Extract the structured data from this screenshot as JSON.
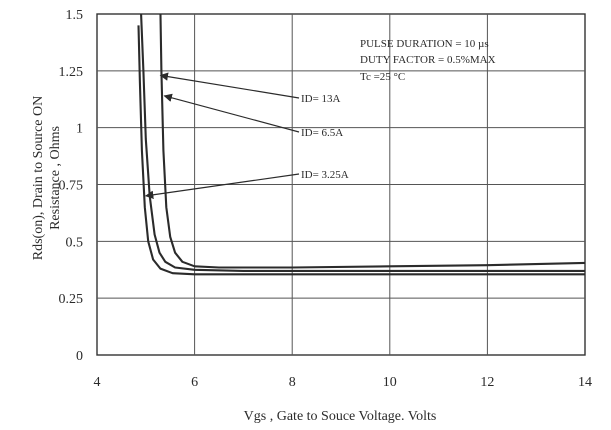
{
  "chart_data": {
    "type": "line",
    "title": "",
    "xlabel": "Vgs , Gate to Souce Voltage. Volts",
    "ylabel_lines": [
      "Rds(on), Drain to Source ON",
      "Resistance , Ohms"
    ],
    "xlim": [
      4,
      14
    ],
    "ylim": [
      0,
      1.5
    ],
    "grid": true,
    "x_ticks": [
      4,
      6,
      8,
      10,
      12,
      14
    ],
    "y_ticks": [
      0,
      0.25,
      0.5,
      0.75,
      1,
      1.25,
      1.5
    ],
    "x_tick_labels": [
      "4",
      "6",
      "8",
      "10",
      "12",
      "14"
    ],
    "y_tick_labels": [
      "0",
      "0.25",
      "0.5",
      "0.75",
      "1",
      "1.25",
      "1.5"
    ],
    "annotation_lines": [
      "PULSE   DURATION = 10 µs",
      "DUTY   FACTOR = 0.5%MAX",
      "Tc =25 °C"
    ],
    "series": [
      {
        "label": "Iₑ= 13A",
        "x": [
          5.3,
          5.32,
          5.36,
          5.42,
          5.5,
          5.6,
          5.75,
          6.0,
          6.5,
          8,
          10,
          12,
          14
        ],
        "y": [
          1.52,
          1.25,
          0.9,
          0.65,
          0.52,
          0.45,
          0.41,
          0.39,
          0.385,
          0.385,
          0.39,
          0.395,
          0.405
        ]
      },
      {
        "label": "Iₑ= 6.5A",
        "x": [
          4.9,
          4.95,
          5.0,
          5.08,
          5.18,
          5.28,
          5.4,
          5.6,
          6.0,
          7,
          10,
          14
        ],
        "y": [
          1.52,
          1.25,
          0.95,
          0.7,
          0.53,
          0.45,
          0.41,
          0.385,
          0.375,
          0.37,
          0.37,
          0.37
        ]
      },
      {
        "label": "Iₑ= 3.25A",
        "x": [
          4.85,
          4.88,
          4.92,
          4.98,
          5.05,
          5.15,
          5.3,
          5.55,
          6.0,
          7,
          10,
          14
        ],
        "y": [
          1.45,
          1.2,
          0.9,
          0.65,
          0.5,
          0.42,
          0.38,
          0.36,
          0.355,
          0.355,
          0.355,
          0.355
        ]
      }
    ],
    "series_labels_display": [
      "ID= 13A",
      "ID= 6.5A",
      "ID= 3.25A"
    ],
    "arrows_point_to": [
      {
        "x": 5.3,
        "y": 1.23
      },
      {
        "x": 5.38,
        "y": 1.14
      },
      {
        "x": 5.0,
        "y": 0.7
      }
    ],
    "colors": {
      "line": "#2b2b2b",
      "grid": "#555555",
      "frame": "#333333"
    }
  }
}
